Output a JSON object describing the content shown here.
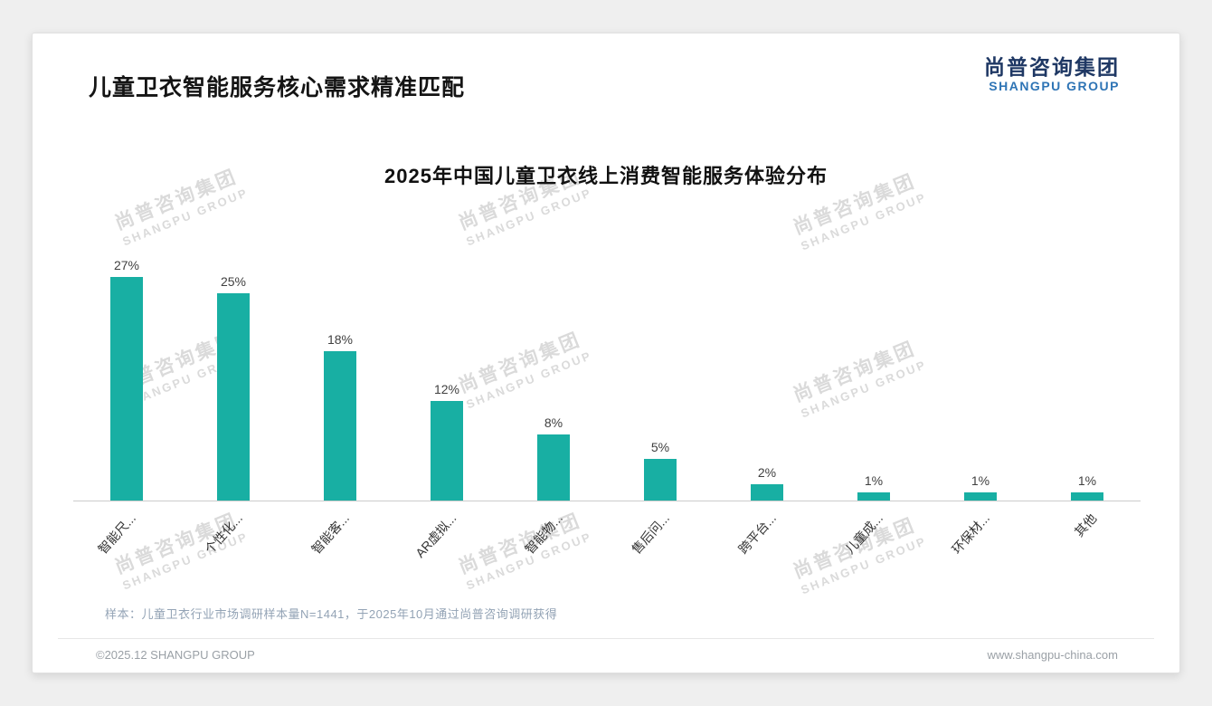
{
  "page": {
    "title": "儿童卫衣智能服务核心需求精准匹配",
    "logo": {
      "cn": "尚普咨询集团",
      "en": "SHANGPU GROUP"
    },
    "watermark": {
      "cn": "尚普咨询集团",
      "en": "SHANGPU GROUP"
    },
    "footnote": "样本：儿童卫衣行业市场调研样本量N=1441，于2025年10月通过尚普咨询调研获得",
    "footer_left": "©2025.12 SHANGPU GROUP",
    "footer_right": "www.shangpu-china.com"
  },
  "colors": {
    "bar": "#18AFA3",
    "logo_cn": "#1F3864",
    "logo_en": "#2E74B5",
    "footnote": "#93A3B5"
  },
  "chart_data": {
    "type": "bar",
    "title": "2025年中国儿童卫衣线上消费智能服务体验分布",
    "categories": [
      "智能尺...",
      "个性化...",
      "智能客...",
      "AR虚拟...",
      "智能物...",
      "售后问...",
      "跨平台...",
      "儿童成...",
      "环保材...",
      "其他"
    ],
    "values": [
      27,
      25,
      18,
      12,
      8,
      5,
      2,
      1,
      1,
      1
    ],
    "value_labels": [
      "27%",
      "25%",
      "18%",
      "12%",
      "8%",
      "5%",
      "2%",
      "1%",
      "1%",
      "1%"
    ],
    "xlabel": "",
    "ylabel": "",
    "ylim": [
      0,
      30
    ],
    "grid": false,
    "legend": "none",
    "bar_color": "#18AFA3"
  }
}
